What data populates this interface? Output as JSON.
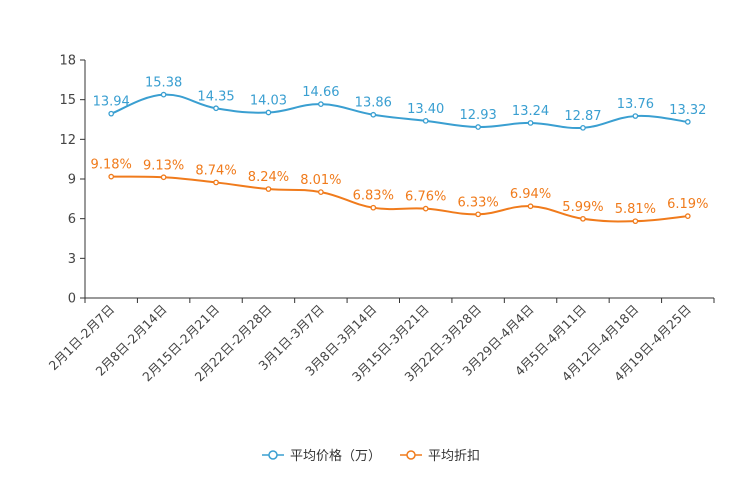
{
  "chart_data": {
    "type": "line",
    "categories": [
      "2月1日-2月7日",
      "2月8日-2月14日",
      "2月15日-2月21日",
      "2月22日-2月28日",
      "3月1日-3月7日",
      "3月8日-3月14日",
      "3月15日-3月21日",
      "3月22日-3月28日",
      "3月29日-4月4日",
      "4月5日-4月11日",
      "4月12日-4月18日",
      "4月19日-4月25日"
    ],
    "y_ticks": [
      "0",
      "3",
      "6",
      "9",
      "12",
      "15",
      "18"
    ],
    "ylim": [
      0,
      18
    ],
    "series": [
      {
        "name": "平均价格（万）",
        "color": "#3a9fd1",
        "values": [
          13.94,
          15.38,
          14.35,
          14.03,
          14.66,
          13.86,
          13.4,
          12.93,
          13.24,
          12.87,
          13.76,
          13.32
        ],
        "labels": [
          "13.94",
          "15.38",
          "14.35",
          "14.03",
          "14.66",
          "13.86",
          "13.40",
          "12.93",
          "13.24",
          "12.87",
          "13.76",
          "13.32"
        ]
      },
      {
        "name": "平均折扣",
        "color": "#f07b1c",
        "values": [
          9.18,
          9.13,
          8.74,
          8.24,
          8.01,
          6.83,
          6.76,
          6.33,
          6.94,
          5.99,
          5.81,
          6.19
        ],
        "labels": [
          "9.18%",
          "9.13%",
          "8.74%",
          "8.24%",
          "8.01%",
          "6.83%",
          "6.76%",
          "6.33%",
          "6.94%",
          "5.99%",
          "5.81%",
          "6.19%"
        ]
      }
    ],
    "legend_position": "bottom-center",
    "grid": false
  }
}
